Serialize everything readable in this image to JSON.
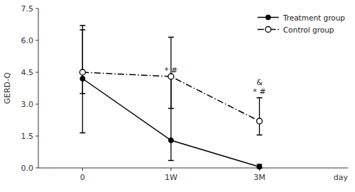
{
  "chart_data": {
    "type": "line",
    "categories": [
      "0",
      "1W",
      "3M"
    ],
    "x_label": "day",
    "y_label": "GERD-Q",
    "ylim": [
      0,
      7.5
    ],
    "yticks": [
      {
        "value": 0.0,
        "label": "0.0"
      },
      1.5,
      {
        "value": 3.0,
        "label": "3.0"
      },
      4.5,
      {
        "value": 6.0,
        "label": "6.0"
      },
      7.5
    ],
    "series": [
      {
        "name": "Treatment group",
        "color": "#000000",
        "marker": "circle",
        "line_style": "solid",
        "values": [
          4.2,
          1.3,
          0.05
        ],
        "yerr_low": [
          2.55,
          0.95,
          0.05
        ],
        "yerr_high": [
          2.5,
          3.0,
          0.12
        ]
      },
      {
        "name": "Control group",
        "color": "#000000",
        "marker": "open-circle",
        "line_style": "dashdot",
        "values": [
          4.5,
          4.3,
          2.2
        ],
        "yerr_low": [
          1.0,
          1.5,
          0.65
        ],
        "yerr_high": [
          2.0,
          1.85,
          1.1
        ]
      }
    ],
    "annotations": [
      {
        "text": "* #",
        "x": "1W",
        "series": "Treatment group"
      },
      {
        "text": "&",
        "x": "3M",
        "series": "Control group"
      },
      {
        "text": "* #",
        "x": "3M",
        "series": "Control group"
      }
    ],
    "legend": "upper right",
    "grid": false
  }
}
